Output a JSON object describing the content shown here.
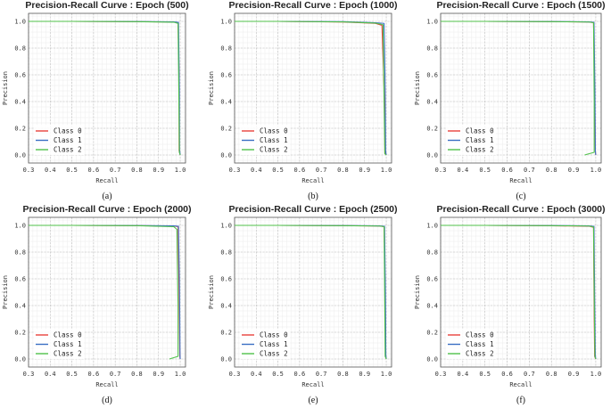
{
  "chart_data": [
    {
      "type": "line",
      "title": "Precision-Recall Curve : Epoch (500)",
      "caption": "(a)",
      "xlabel": "Recall",
      "ylabel": "Precision",
      "xlim": [
        0.3,
        1.0
      ],
      "ylim": [
        0.0,
        1.0
      ],
      "xticks": [
        "0.3",
        "0.4",
        "0.5",
        "0.6",
        "0.7",
        "0.8",
        "0.9",
        "1.0"
      ],
      "yticks": [
        "0.0",
        "0.2",
        "0.4",
        "0.6",
        "0.8",
        "1.0"
      ],
      "grid": true,
      "legend_position": "lower-left",
      "series": [
        {
          "name": "Class 0",
          "color": "#e8413c",
          "x": [
            0.3,
            0.5,
            0.8,
            0.97,
            0.99,
            0.995,
            0.995,
            1.0
          ],
          "y": [
            1.0,
            1.0,
            0.998,
            0.995,
            0.99,
            0.6,
            0.03,
            0.0
          ]
        },
        {
          "name": "Class 1",
          "color": "#3a6fc4",
          "x": [
            0.3,
            0.5,
            0.8,
            0.97,
            0.992,
            0.996,
            0.997,
            1.0
          ],
          "y": [
            1.0,
            1.0,
            0.999,
            0.996,
            0.992,
            0.5,
            0.04,
            0.0
          ]
        },
        {
          "name": "Class 2",
          "color": "#4fc24a",
          "x": [
            0.3,
            0.5,
            0.8,
            0.97,
            0.99,
            0.994,
            0.996,
            1.0
          ],
          "y": [
            1.0,
            1.0,
            0.998,
            0.994,
            0.985,
            0.4,
            0.02,
            0.0
          ]
        }
      ]
    },
    {
      "type": "line",
      "title": "Precision-Recall Curve : Epoch (1000)",
      "caption": "(b)",
      "xlabel": "Recall",
      "ylabel": "Precision",
      "xlim": [
        0.3,
        1.0
      ],
      "ylim": [
        0.0,
        1.0
      ],
      "xticks": [
        "0.3",
        "0.4",
        "0.5",
        "0.6",
        "0.7",
        "0.8",
        "0.9",
        "1.0"
      ],
      "yticks": [
        "0.0",
        "0.2",
        "0.4",
        "0.6",
        "0.8",
        "1.0"
      ],
      "grid": true,
      "legend_position": "lower-left",
      "series": [
        {
          "name": "Class 0",
          "color": "#e8413c",
          "x": [
            0.3,
            0.5,
            0.8,
            0.95,
            0.98,
            0.99,
            0.995,
            1.0
          ],
          "y": [
            1.0,
            1.0,
            0.995,
            0.985,
            0.97,
            0.5,
            0.02,
            0.0
          ]
        },
        {
          "name": "Class 1",
          "color": "#3a6fc4",
          "x": [
            0.3,
            0.5,
            0.8,
            0.95,
            0.99,
            0.995,
            0.997,
            1.0
          ],
          "y": [
            1.0,
            1.0,
            0.998,
            0.99,
            0.985,
            0.5,
            0.03,
            0.0
          ]
        },
        {
          "name": "Class 2",
          "color": "#4fc24a",
          "x": [
            0.3,
            0.5,
            0.8,
            0.95,
            0.985,
            0.99,
            0.993,
            1.0
          ],
          "y": [
            1.0,
            1.0,
            0.996,
            0.987,
            0.975,
            0.4,
            0.01,
            0.0
          ]
        }
      ]
    },
    {
      "type": "line",
      "title": "Precision-Recall Curve : Epoch (1500)",
      "caption": "(c)",
      "xlabel": "Recall",
      "ylabel": "Precision",
      "xlim": [
        0.3,
        1.0
      ],
      "ylim": [
        0.0,
        1.0
      ],
      "xticks": [
        "0.3",
        "0.4",
        "0.5",
        "0.6",
        "0.7",
        "0.8",
        "0.9",
        "1.0"
      ],
      "yticks": [
        "0.0",
        "0.2",
        "0.4",
        "0.6",
        "0.8",
        "1.0"
      ],
      "grid": true,
      "legend_position": "lower-left",
      "series": [
        {
          "name": "Class 0",
          "color": "#e8413c",
          "x": [
            0.3,
            0.5,
            0.8,
            0.97,
            0.99,
            0.995,
            0.998,
            1.0
          ],
          "y": [
            1.0,
            1.0,
            0.998,
            0.995,
            0.99,
            0.5,
            0.03,
            0.0
          ]
        },
        {
          "name": "Class 1",
          "color": "#3a6fc4",
          "x": [
            0.3,
            0.5,
            0.8,
            0.97,
            0.992,
            0.996,
            0.998,
            1.0
          ],
          "y": [
            1.0,
            1.0,
            0.999,
            0.996,
            0.993,
            0.5,
            0.03,
            0.0
          ]
        },
        {
          "name": "Class 2",
          "color": "#4fc24a",
          "x": [
            0.3,
            0.5,
            0.8,
            0.97,
            0.99,
            0.993,
            0.993,
            0.96,
            0.95
          ],
          "y": [
            1.0,
            1.0,
            0.998,
            0.995,
            0.99,
            0.4,
            0.02,
            0.005,
            0.0
          ]
        }
      ]
    },
    {
      "type": "line",
      "title": "Precision-Recall Curve : Epoch (2000)",
      "caption": "(d)",
      "xlabel": "Recall",
      "ylabel": "Precision",
      "xlim": [
        0.3,
        1.0
      ],
      "ylim": [
        0.0,
        1.0
      ],
      "xticks": [
        "0.3",
        "0.4",
        "0.5",
        "0.6",
        "0.7",
        "0.8",
        "0.9",
        "1.0"
      ],
      "yticks": [
        "0.0",
        "0.2",
        "0.4",
        "0.6",
        "0.8",
        "1.0"
      ],
      "grid": true,
      "legend_position": "lower-left",
      "series": [
        {
          "name": "Class 0",
          "color": "#e8413c",
          "x": [
            0.3,
            0.5,
            0.8,
            0.97,
            0.99,
            0.995,
            0.998,
            1.0
          ],
          "y": [
            1.0,
            1.0,
            0.998,
            0.995,
            0.99,
            0.5,
            0.02,
            0.0
          ]
        },
        {
          "name": "Class 1",
          "color": "#3a6fc4",
          "x": [
            0.3,
            0.5,
            0.8,
            0.97,
            0.992,
            0.997,
            0.999,
            1.0
          ],
          "y": [
            1.0,
            1.0,
            0.999,
            0.996,
            0.993,
            0.5,
            0.03,
            0.0
          ]
        },
        {
          "name": "Class 2",
          "color": "#4fc24a",
          "x": [
            0.3,
            0.5,
            0.8,
            0.97,
            0.985,
            0.99,
            0.99,
            0.96,
            0.95
          ],
          "y": [
            1.0,
            1.0,
            0.998,
            0.99,
            0.97,
            0.4,
            0.02,
            0.005,
            0.0
          ]
        }
      ]
    },
    {
      "type": "line",
      "title": "Precision-Recall Curve : Epoch (2500)",
      "caption": "(e)",
      "xlabel": "Recall",
      "ylabel": "Precision",
      "xlim": [
        0.3,
        1.0
      ],
      "ylim": [
        0.0,
        1.0
      ],
      "xticks": [
        "0.3",
        "0.4",
        "0.5",
        "0.6",
        "0.7",
        "0.8",
        "0.9",
        "1.0"
      ],
      "yticks": [
        "0.0",
        "0.2",
        "0.4",
        "0.6",
        "0.8",
        "1.0"
      ],
      "grid": true,
      "legend_position": "lower-left",
      "series": [
        {
          "name": "Class 0",
          "color": "#e8413c",
          "x": [
            0.3,
            0.5,
            0.8,
            0.97,
            0.99,
            0.995,
            0.997,
            1.0
          ],
          "y": [
            1.0,
            1.0,
            0.998,
            0.995,
            0.99,
            0.5,
            0.03,
            0.0
          ]
        },
        {
          "name": "Class 1",
          "color": "#3a6fc4",
          "x": [
            0.3,
            0.5,
            0.8,
            0.97,
            0.992,
            0.996,
            0.998,
            1.0
          ],
          "y": [
            1.0,
            1.0,
            0.999,
            0.996,
            0.993,
            0.5,
            0.03,
            0.0
          ]
        },
        {
          "name": "Class 2",
          "color": "#4fc24a",
          "x": [
            0.3,
            0.5,
            0.8,
            0.97,
            0.99,
            0.993,
            0.995,
            1.0
          ],
          "y": [
            1.0,
            1.0,
            0.998,
            0.995,
            0.99,
            0.4,
            0.02,
            0.0
          ]
        }
      ]
    },
    {
      "type": "line",
      "title": "Precision-Recall Curve : Epoch (3000)",
      "caption": "(f)",
      "xlabel": "Recall",
      "ylabel": "Precision",
      "xlim": [
        0.3,
        1.0
      ],
      "ylim": [
        0.0,
        1.0
      ],
      "xticks": [
        "0.3",
        "0.4",
        "0.5",
        "0.6",
        "0.7",
        "0.8",
        "0.9",
        "1.0"
      ],
      "yticks": [
        "0.0",
        "0.2",
        "0.4",
        "0.6",
        "0.8",
        "1.0"
      ],
      "grid": true,
      "legend_position": "lower-left",
      "series": [
        {
          "name": "Class 0",
          "color": "#e8413c",
          "x": [
            0.3,
            0.5,
            0.8,
            0.97,
            0.99,
            0.993,
            0.995,
            1.0
          ],
          "y": [
            1.0,
            1.0,
            0.997,
            0.994,
            0.985,
            0.3,
            0.02,
            0.0
          ]
        },
        {
          "name": "Class 1",
          "color": "#3a6fc4",
          "x": [
            0.3,
            0.5,
            0.8,
            0.97,
            0.992,
            0.996,
            0.998,
            1.0
          ],
          "y": [
            1.0,
            1.0,
            0.999,
            0.996,
            0.992,
            0.3,
            0.03,
            0.0
          ]
        },
        {
          "name": "Class 2",
          "color": "#4fc24a",
          "x": [
            0.3,
            0.5,
            0.8,
            0.97,
            0.99,
            0.994,
            0.996,
            1.0
          ],
          "y": [
            1.0,
            1.0,
            0.998,
            0.995,
            0.988,
            0.3,
            0.02,
            0.0
          ]
        }
      ]
    }
  ]
}
